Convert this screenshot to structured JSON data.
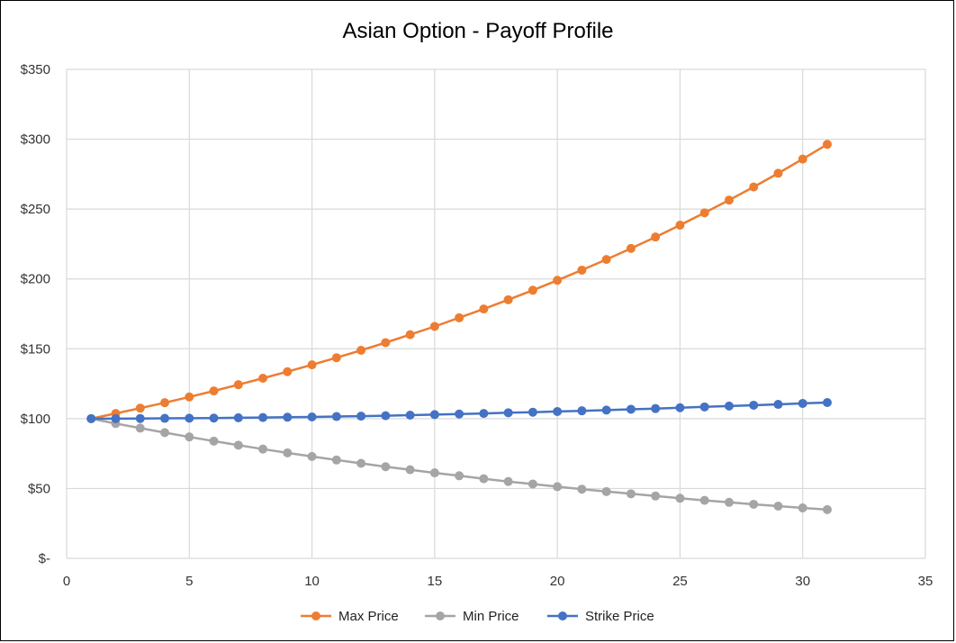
{
  "chart_data": {
    "type": "scatter",
    "title": "Asian Option - Payoff Profile",
    "xlabel": "",
    "ylabel": "",
    "xlim": [
      0,
      35
    ],
    "ylim": [
      0,
      350
    ],
    "x_ticks": [
      0,
      5,
      10,
      15,
      20,
      25,
      30,
      35
    ],
    "y_ticks": [
      0,
      50,
      100,
      150,
      200,
      250,
      300,
      350
    ],
    "x_tick_labels": [
      "0",
      "5",
      "10",
      "15",
      "20",
      "25",
      "30",
      "35"
    ],
    "y_tick_labels": [
      "$-",
      "$50",
      "$100",
      "$150",
      "$200",
      "$250",
      "$300",
      "$350"
    ],
    "grid": true,
    "legend_position": "bottom",
    "x": [
      1,
      2,
      3,
      4,
      5,
      6,
      7,
      8,
      9,
      10,
      11,
      12,
      13,
      14,
      15,
      16,
      17,
      18,
      19,
      20,
      21,
      22,
      23,
      24,
      25,
      26,
      27,
      28,
      29,
      30,
      31
    ],
    "series": [
      {
        "name": "Max Price",
        "color": "#ED7D31",
        "values": [
          100,
          103.7,
          107.5,
          111.4,
          115.5,
          119.8,
          124.3,
          128.9,
          133.6,
          138.5,
          143.6,
          148.9,
          154.4,
          160.1,
          166,
          172.2,
          178.5,
          185.1,
          191.9,
          199,
          206.3,
          213.9,
          221.8,
          230,
          238.5,
          247.3,
          256.4,
          265.8,
          275.6,
          285.8,
          296.3
        ]
      },
      {
        "name": "Min Price",
        "color": "#A5A5A5",
        "values": [
          100,
          96.5,
          93.2,
          90,
          86.9,
          83.9,
          81,
          78.2,
          75.5,
          72.9,
          70.4,
          68,
          65.6,
          63.4,
          61.2,
          59.1,
          57,
          55,
          53.2,
          51.3,
          49.5,
          47.8,
          46.2,
          44.6,
          43,
          41.5,
          40.1,
          38.7,
          37.4,
          36.1,
          34.9
        ]
      },
      {
        "name": "Strike Price",
        "color": "#4472C4",
        "values": [
          100,
          100,
          100.1,
          100.2,
          100.3,
          100.4,
          100.6,
          100.8,
          101,
          101.2,
          101.5,
          101.8,
          102.1,
          102.5,
          102.9,
          103.3,
          103.7,
          104.2,
          104.6,
          105.1,
          105.6,
          106.1,
          106.7,
          107.2,
          107.8,
          108.4,
          109,
          109.6,
          110.2,
          110.9,
          111.5
        ]
      }
    ]
  }
}
